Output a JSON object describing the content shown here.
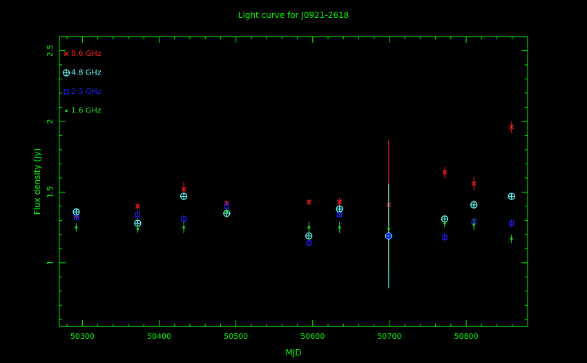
{
  "chart_data": {
    "type": "scatter",
    "title": "Light curve for J0921-2618",
    "xlabel": "MJD",
    "ylabel": "Flux density (Jy)",
    "xlim": [
      50270,
      50880
    ],
    "ylim": [
      0.55,
      2.6
    ],
    "xticks": [
      50300,
      50400,
      50500,
      50600,
      50700,
      50800
    ],
    "yticks": [
      1,
      1.5,
      2,
      2.5
    ],
    "grid": false,
    "legend_position": "top-left",
    "colors": {
      "background": "#000000",
      "axes": "#00ff00",
      "text": "#00ff00"
    },
    "series": [
      {
        "name": "8.6 GHz",
        "marker": "cross",
        "color": "#ff2020",
        "points": [
          {
            "x": 50292,
            "y": 1.33,
            "err": 0.02
          },
          {
            "x": 50372,
            "y": 1.4,
            "err": 0.02
          },
          {
            "x": 50432,
            "y": 1.52,
            "err": 0.05
          },
          {
            "x": 50488,
            "y": 1.42,
            "err": 0.02
          },
          {
            "x": 50595,
            "y": 1.43,
            "err": 0.02
          },
          {
            "x": 50635,
            "y": 1.43,
            "err": 0.03
          },
          {
            "x": 50699,
            "y": 1.41,
            "err": 0.46
          },
          {
            "x": 50772,
            "y": 1.64,
            "err": 0.04
          },
          {
            "x": 50810,
            "y": 1.56,
            "err": 0.05
          },
          {
            "x": 50859,
            "y": 1.96,
            "err": 0.04
          }
        ]
      },
      {
        "name": "4.8 GHz",
        "marker": "circle-plus",
        "color": "#60ffff",
        "points": [
          {
            "x": 50292,
            "y": 1.36,
            "err": 0.02
          },
          {
            "x": 50372,
            "y": 1.28,
            "err": 0.02
          },
          {
            "x": 50432,
            "y": 1.47,
            "err": 0.02
          },
          {
            "x": 50488,
            "y": 1.35,
            "err": 0.02
          },
          {
            "x": 50595,
            "y": 1.19,
            "err": 0.02
          },
          {
            "x": 50635,
            "y": 1.38,
            "err": 0.02
          },
          {
            "x": 50699,
            "y": 1.19,
            "err": 0.37
          },
          {
            "x": 50772,
            "y": 1.31,
            "err": 0.02
          },
          {
            "x": 50810,
            "y": 1.41,
            "err": 0.03
          },
          {
            "x": 50859,
            "y": 1.47,
            "err": 0.02
          }
        ]
      },
      {
        "name": "2.3 GHz",
        "marker": "square",
        "color": "#2020ff",
        "points": [
          {
            "x": 50292,
            "y": 1.32,
            "err": 0.02
          },
          {
            "x": 50372,
            "y": 1.34,
            "err": 0.03
          },
          {
            "x": 50432,
            "y": 1.31,
            "err": 0.03
          },
          {
            "x": 50488,
            "y": 1.4,
            "err": 0.03
          },
          {
            "x": 50595,
            "y": 1.14,
            "err": 0.02
          },
          {
            "x": 50635,
            "y": 1.34,
            "err": 0.02
          },
          {
            "x": 50699,
            "y": 1.19,
            "err": 0.02
          },
          {
            "x": 50772,
            "y": 1.18,
            "err": 0.03
          },
          {
            "x": 50810,
            "y": 1.29,
            "err": 0.03
          },
          {
            "x": 50859,
            "y": 1.28,
            "err": 0.03
          }
        ]
      },
      {
        "name": "1.6 GHz",
        "marker": "dot",
        "color": "#20e020",
        "points": [
          {
            "x": 50292,
            "y": 1.25,
            "err": 0.03
          },
          {
            "x": 50372,
            "y": 1.24,
            "err": 0.03
          },
          {
            "x": 50432,
            "y": 1.25,
            "err": 0.04
          },
          {
            "x": 50488,
            "y": 1.36,
            "err": 0.02
          },
          {
            "x": 50595,
            "y": 1.25,
            "err": 0.04
          },
          {
            "x": 50635,
            "y": 1.25,
            "err": 0.04
          },
          {
            "x": 50699,
            "y": 1.24,
            "err": 0.02
          },
          {
            "x": 50772,
            "y": 1.28,
            "err": 0.03
          },
          {
            "x": 50810,
            "y": 1.27,
            "err": 0.04
          },
          {
            "x": 50859,
            "y": 1.17,
            "err": 0.03
          }
        ]
      }
    ]
  }
}
